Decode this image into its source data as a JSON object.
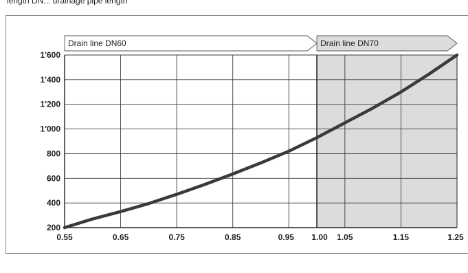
{
  "caption_fragment": "length DN... drainage pipe length",
  "chart_data": {
    "type": "line",
    "x": [
      0.55,
      0.6,
      0.65,
      0.7,
      0.75,
      0.8,
      0.85,
      0.9,
      0.95,
      1.0,
      1.05,
      1.1,
      1.15,
      1.2,
      1.25
    ],
    "series": [
      {
        "values": [
          200,
          270,
          330,
          395,
          470,
          550,
          635,
          725,
          820,
          930,
          1050,
          1170,
          1300,
          1445,
          1600
        ]
      }
    ],
    "x_ticks": [
      "0.55",
      "0.65",
      "0.75",
      "0.85",
      "0.95",
      "1.00",
      "1.05",
      "1.15",
      "1.25"
    ],
    "x_tick_values": [
      0.55,
      0.65,
      0.75,
      0.85,
      0.95,
      1.0,
      1.05,
      1.15,
      1.25
    ],
    "y_ticks": [
      "200",
      "400",
      "600",
      "800",
      "1'000",
      "1'200",
      "1'400",
      "1'600"
    ],
    "y_tick_values": [
      200,
      400,
      600,
      800,
      1000,
      1200,
      1400,
      1600
    ],
    "xlim": [
      0.55,
      1.25
    ],
    "ylim": [
      200,
      1600
    ],
    "grid": true,
    "regions": [
      {
        "label": "Drain line DN60",
        "from": 0.55,
        "to": 1.0,
        "fill": "#ffffff"
      },
      {
        "label": "Drain line DN70",
        "from": 1.0,
        "to": 1.25,
        "fill": "#dcdcdc"
      }
    ],
    "line_color": "#3a3a3a",
    "grid_color": "#3a3a3a"
  }
}
